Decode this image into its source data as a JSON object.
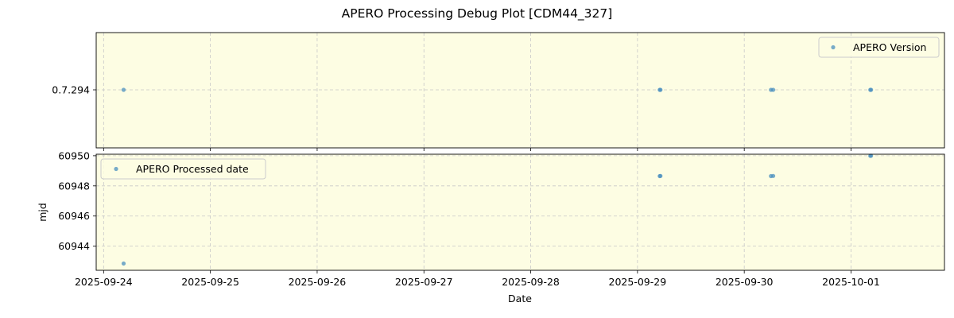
{
  "chart_data": {
    "title": "APERO Processing Debug Plot [CDM44_327]",
    "type": "scatter",
    "colors": {
      "panel_background": "#fdfde3",
      "point": "#4a8fbf",
      "grid": "#c8c8c8"
    },
    "grid": true,
    "x_axis": {
      "label": "Date",
      "ticks": [
        "2025-09-24",
        "2025-09-25",
        "2025-09-26",
        "2025-09-27",
        "2025-09-28",
        "2025-09-29",
        "2025-09-30",
        "2025-10-01"
      ],
      "range": [
        "2025-09-23T22:20",
        "2025-10-01T21:00"
      ]
    },
    "panels": [
      {
        "series_name": "APERO Version",
        "legend_position": "top-right",
        "ylabel": "",
        "yticks": [
          "0.7.294"
        ],
        "points": [
          {
            "x": "2025-09-24T04:30",
            "y": "0.7.294"
          },
          {
            "x": "2025-09-29T05:00",
            "y": "0.7.294"
          },
          {
            "x": "2025-09-29T05:10",
            "y": "0.7.294"
          },
          {
            "x": "2025-09-30T06:00",
            "y": "0.7.294"
          },
          {
            "x": "2025-09-30T06:30",
            "y": "0.7.294"
          },
          {
            "x": "2025-10-01T04:20",
            "y": "0.7.294"
          },
          {
            "x": "2025-10-01T04:30",
            "y": "0.7.294"
          }
        ]
      },
      {
        "series_name": "APERO Processed date",
        "legend_position": "top-left",
        "ylabel": "mjd",
        "yticks": [
          60944,
          60946,
          60948,
          60950
        ],
        "ylim": [
          60942.4,
          60950.1
        ],
        "points": [
          {
            "x": "2025-09-24T04:30",
            "y": 60942.85
          },
          {
            "x": "2025-09-29T05:00",
            "y": 60948.65
          },
          {
            "x": "2025-09-29T05:10",
            "y": 60948.66
          },
          {
            "x": "2025-09-30T06:00",
            "y": 60948.65
          },
          {
            "x": "2025-09-30T06:30",
            "y": 60948.66
          },
          {
            "x": "2025-10-01T04:20",
            "y": 60949.99
          },
          {
            "x": "2025-10-01T04:30",
            "y": 60950.0
          }
        ]
      }
    ]
  }
}
